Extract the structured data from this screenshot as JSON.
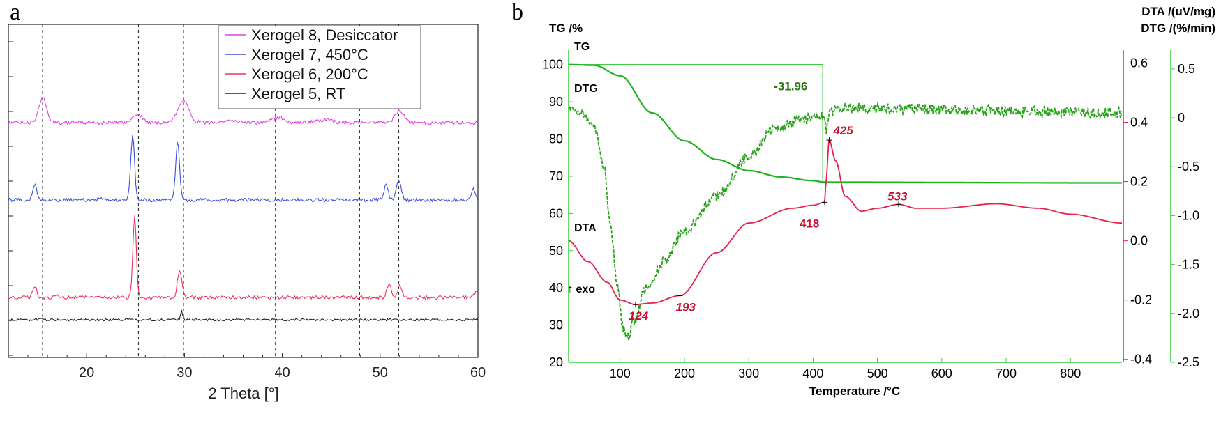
{
  "panels": {
    "a": "a",
    "b": "b"
  },
  "chart_data": [
    {
      "type": "line",
      "panel": "a",
      "xlabel": "2 Theta [°]",
      "xlim": [
        12,
        60
      ],
      "x_ticks": [
        20,
        30,
        40,
        50,
        60
      ],
      "y_ticks_labeled": false,
      "reference_lines_x": [
        15.5,
        25.3,
        29.9,
        39.3,
        47.9,
        51.9
      ],
      "legend_position": "top-right",
      "series": [
        {
          "name": "Xerogel 8, Desiccator",
          "color": "#e040e0",
          "baseline": 176,
          "noise": 2.5,
          "peaks": [
            [
              15.5,
              36,
              0.55
            ],
            [
              25.2,
              12,
              0.7
            ],
            [
              29.9,
              32,
              0.8
            ],
            [
              39.6,
              8,
              0.8
            ],
            [
              44.2,
              4,
              1.0
            ],
            [
              52.0,
              18,
              0.6
            ],
            [
              34.5,
              3,
              1.2
            ]
          ]
        },
        {
          "name": "Xerogel 7, 450°C",
          "color": "#3a4fd8",
          "baseline": 287,
          "noise": 2.5,
          "peaks": [
            [
              14.7,
              22,
              0.3
            ],
            [
              24.7,
              92,
              0.28
            ],
            [
              29.3,
              84,
              0.28
            ],
            [
              50.6,
              22,
              0.3
            ],
            [
              51.9,
              28,
              0.35
            ],
            [
              59.5,
              15,
              0.3
            ],
            [
              21.4,
              4,
              0.3
            ]
          ]
        },
        {
          "name": "Xerogel 6, 200°C",
          "color": "#f0305a",
          "baseline": 427,
          "noise": 2.5,
          "peaks": [
            [
              14.7,
              16,
              0.3
            ],
            [
              24.9,
              116,
              0.25
            ],
            [
              29.5,
              40,
              0.3
            ],
            [
              50.9,
              20,
              0.3
            ],
            [
              52.0,
              16,
              0.3
            ],
            [
              59.9,
              10,
              0.3
            ],
            [
              17.0,
              4,
              0.4
            ]
          ]
        },
        {
          "name": "Xerogel 5, RT",
          "color": "#222222",
          "baseline": 459,
          "noise": 1.6,
          "peaks": [
            [
              29.7,
              14,
              0.15
            ],
            [
              15.3,
              2,
              0.3
            ],
            [
              24.4,
              2,
              0.3
            ]
          ]
        }
      ]
    },
    {
      "type": "line",
      "panel": "b",
      "xlabel": "Temperature /°C",
      "xlim": [
        20,
        880
      ],
      "x_ticks": [
        100,
        200,
        300,
        400,
        500,
        600,
        700,
        800
      ],
      "axes": {
        "tg": {
          "title": "TG /%",
          "ylim": [
            20,
            102
          ],
          "ticks": [
            20,
            30,
            40,
            50,
            60,
            70,
            80,
            90,
            100
          ]
        },
        "dta": {
          "title": "DTA /(uV/mg)",
          "ylim": [
            -0.41,
            0.62
          ],
          "ticks": [
            -0.4,
            -0.2,
            0,
            0.2,
            0.4,
            0.6
          ]
        },
        "dtg": {
          "title": "DTG /(%/min)",
          "ylim": [
            -2.5,
            0.62
          ],
          "ticks": [
            -2.5,
            -2.0,
            -1.5,
            -1.0,
            -0.5,
            0,
            0.5
          ]
        }
      },
      "series": [
        {
          "name": "TG",
          "axis": "tg",
          "color": "#1fb31f",
          "points": [
            [
              20,
              100
            ],
            [
              60,
              99.8
            ],
            [
              100,
              97
            ],
            [
              150,
              87
            ],
            [
              200,
              79.5
            ],
            [
              250,
              74.5
            ],
            [
              300,
              71.5
            ],
            [
              350,
              69.8
            ],
            [
              400,
              68.8
            ],
            [
              418,
              68.4
            ],
            [
              880,
              68.2
            ]
          ]
        },
        {
          "name": "DTG",
          "axis": "dtg",
          "color": "#2aa21c",
          "dashed": true,
          "points": [
            [
              20,
              0.1
            ],
            [
              40,
              0.05
            ],
            [
              60,
              -0.1
            ],
            [
              75,
              -0.5
            ],
            [
              85,
              -1.1
            ],
            [
              95,
              -1.7
            ],
            [
              105,
              -2.15
            ],
            [
              112,
              -2.25
            ],
            [
              120,
              -2.1
            ],
            [
              140,
              -1.75
            ],
            [
              170,
              -1.45
            ],
            [
              200,
              -1.15
            ],
            [
              250,
              -0.8
            ],
            [
              300,
              -0.4
            ],
            [
              340,
              -0.12
            ],
            [
              380,
              -0.02
            ],
            [
              410,
              0.02
            ],
            [
              417,
              0.0
            ],
            [
              420,
              -0.15
            ],
            [
              425,
              0.05
            ],
            [
              440,
              0.1
            ],
            [
              880,
              0.05
            ]
          ]
        },
        {
          "name": "DTA",
          "axis": "dta",
          "color": "#e8204a",
          "points": [
            [
              20,
              0.0
            ],
            [
              50,
              -0.07
            ],
            [
              80,
              -0.14
            ],
            [
              100,
              -0.2
            ],
            [
              124,
              -0.215
            ],
            [
              150,
              -0.21
            ],
            [
              193,
              -0.185
            ],
            [
              250,
              -0.04
            ],
            [
              300,
              0.06
            ],
            [
              368,
              0.11
            ],
            [
              400,
              0.12
            ],
            [
              418,
              0.13
            ],
            [
              420,
              0.2
            ],
            [
              425,
              0.34
            ],
            [
              435,
              0.27
            ],
            [
              450,
              0.15
            ],
            [
              475,
              0.1
            ],
            [
              500,
              0.11
            ],
            [
              533,
              0.123
            ],
            [
              560,
              0.11
            ],
            [
              600,
              0.11
            ],
            [
              685,
              0.125
            ],
            [
              750,
              0.11
            ],
            [
              800,
              0.09
            ],
            [
              880,
              0.06
            ]
          ]
        }
      ],
      "curve_labels": {
        "tg": "TG",
        "dtg": "DTG",
        "dta": "DTA",
        "exo": "↑ exo"
      },
      "step": {
        "label": "-31.96",
        "x_start": 30,
        "x_end": 415,
        "y_top": 100,
        "y_bottom": 68.2
      },
      "annotations": [
        {
          "label": "124",
          "x": 124,
          "axis": "dta",
          "y": -0.215
        },
        {
          "label": "193",
          "x": 193,
          "axis": "dta",
          "y": -0.185
        },
        {
          "label": "418",
          "x": 418,
          "axis": "dta",
          "y": 0.13
        },
        {
          "label": "425",
          "x": 425,
          "axis": "dta",
          "y": 0.34
        },
        {
          "label": "533",
          "x": 533,
          "axis": "dta",
          "y": 0.123
        }
      ]
    }
  ]
}
